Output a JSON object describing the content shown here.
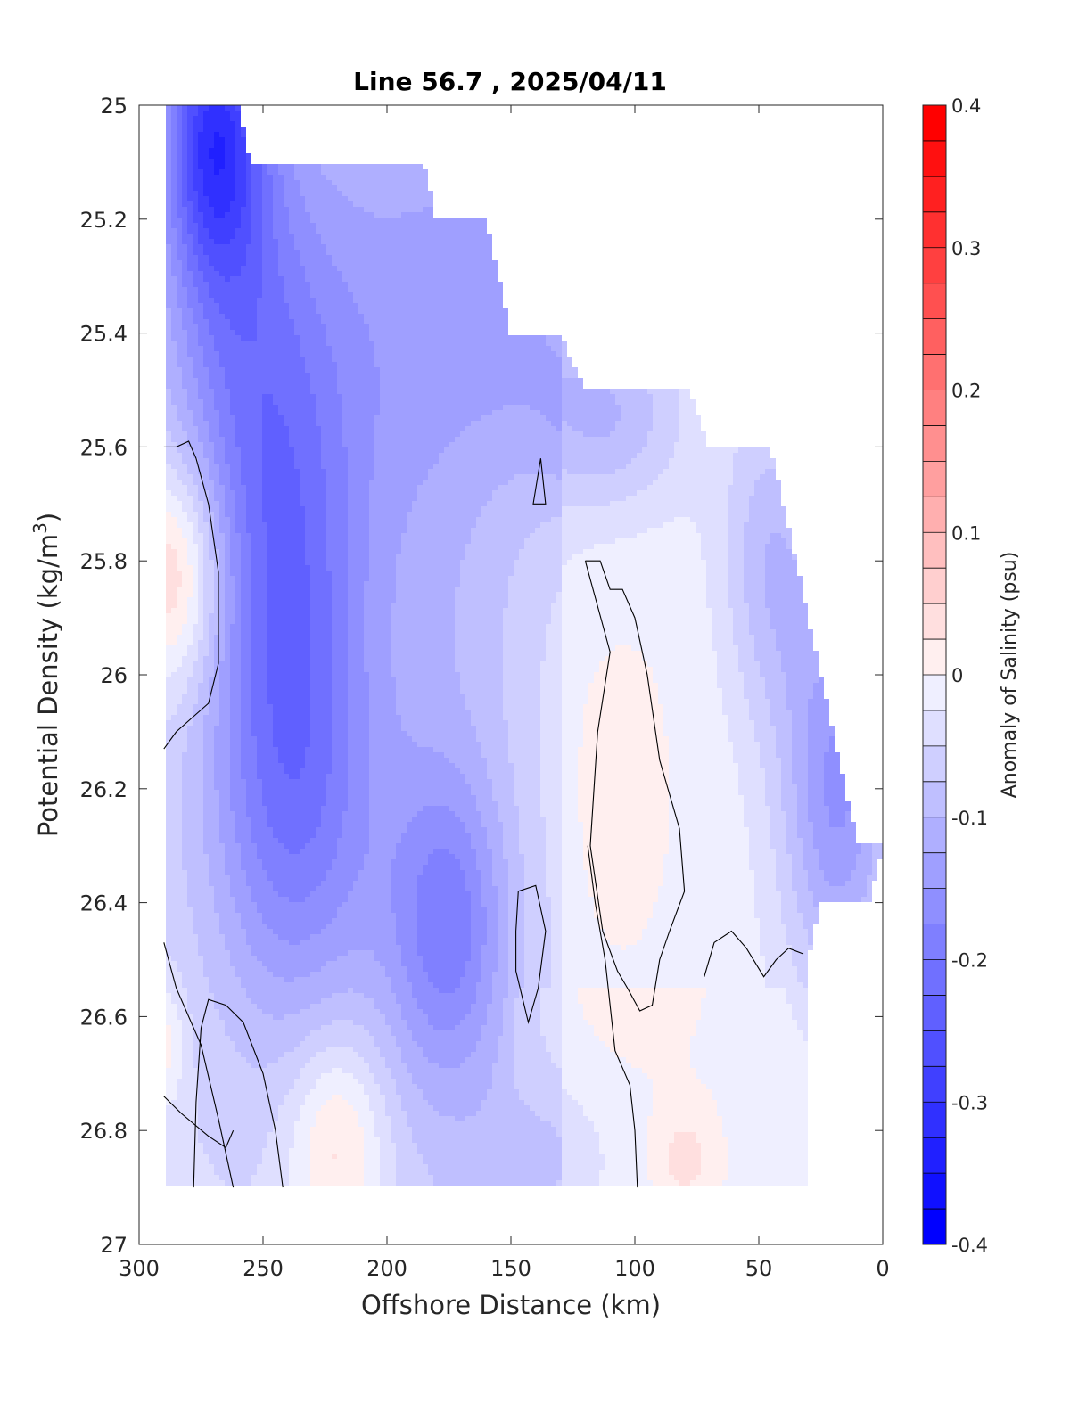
{
  "chart_data": {
    "type": "contour",
    "title": "Line 56.7 , 2025/04/11",
    "xlabel": "Offshore Distance (km)",
    "ylabel_main": "Potential Density (kg/m",
    "ylabel_sup": "3",
    "ylabel_close": ")",
    "xlim": [
      300,
      0
    ],
    "ylim": [
      25,
      27
    ],
    "x_reversed": true,
    "y_reversed": true,
    "x_ticks": [
      300,
      250,
      200,
      150,
      100,
      50,
      0
    ],
    "x_tick_labels": [
      "300",
      "250",
      "200",
      "150",
      "100",
      "50",
      "0"
    ],
    "y_ticks": [
      25,
      25.2,
      25.4,
      25.6,
      25.8,
      26,
      26.2,
      26.4,
      26.6,
      26.8,
      27
    ],
    "y_tick_labels": [
      "25",
      "25.2",
      "25.4",
      "25.6",
      "25.8",
      "26",
      "26.2",
      "26.4",
      "26.6",
      "26.8",
      "27"
    ],
    "colorbar": {
      "label": "Anomaly of Salinity (psu)",
      "range": [
        -0.4,
        0.4
      ],
      "ticks": [
        0.4,
        0.3,
        0.2,
        0.1,
        0,
        -0.1,
        -0.2,
        -0.3,
        -0.4
      ],
      "tick_labels": [
        "0.4",
        "0.3",
        "0.2",
        "0.1",
        "0",
        "-0.1",
        "-0.2",
        "-0.3",
        "-0.4"
      ],
      "step": 0.025,
      "colormap": "blue-white-red"
    },
    "contour_zero_line": true,
    "data_extent": [
      [
        290,
        25.0
      ],
      [
        260,
        25.0
      ],
      [
        255,
        25.1
      ],
      [
        185,
        25.1
      ],
      [
        180,
        25.2
      ],
      [
        160,
        25.2
      ],
      [
        150,
        25.4
      ],
      [
        130,
        25.4
      ],
      [
        120,
        25.5
      ],
      [
        78,
        25.5
      ],
      [
        70,
        25.6
      ],
      [
        45,
        25.6
      ],
      [
        20,
        26.1
      ],
      [
        10,
        26.3
      ],
      [
        0,
        26.3
      ],
      [
        5,
        26.4
      ],
      [
        25,
        26.4
      ],
      [
        30,
        26.5
      ],
      [
        30,
        26.9
      ],
      [
        290,
        26.9
      ]
    ],
    "features": [
      {
        "x": 270,
        "y": 25.1,
        "value": -0.3
      },
      {
        "x": 240,
        "y": 25.9,
        "value": -0.2
      },
      {
        "x": 285,
        "y": 25.8,
        "value": 0.07
      },
      {
        "x": 175,
        "y": 26.45,
        "value": -0.16
      },
      {
        "x": 220,
        "y": 26.8,
        "value": 0.03
      },
      {
        "x": 80,
        "y": 26.85,
        "value": 0.02
      },
      {
        "x": 290,
        "y": 26.65,
        "value": 0.03
      },
      {
        "x": 35,
        "y": 26.2,
        "value": -0.22
      },
      {
        "x": 120,
        "y": 25.55,
        "value": -0.1
      }
    ]
  }
}
